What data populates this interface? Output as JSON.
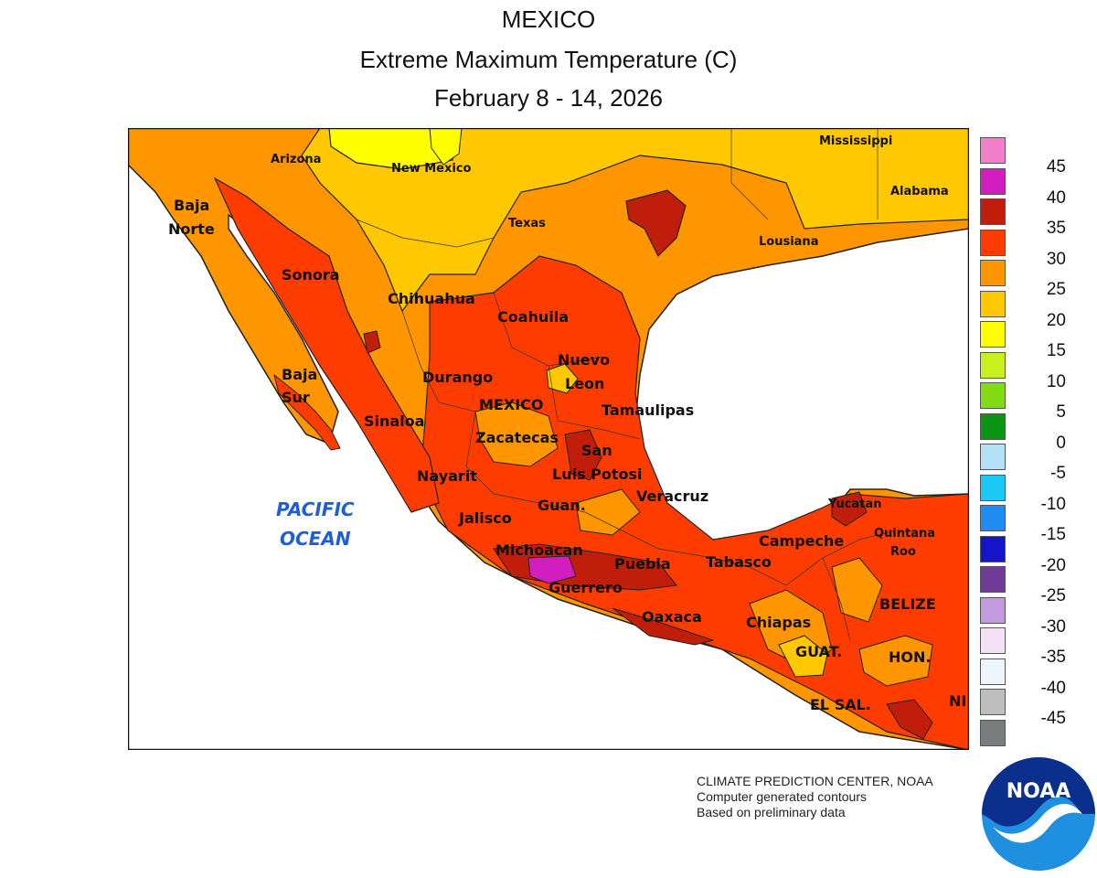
{
  "title": {
    "line1": "MEXICO",
    "line2": "Extreme Maximum Temperature (C)",
    "line3": "February 8 - 14, 2026"
  },
  "map": {
    "ocean_label_1": "PACIFIC",
    "ocean_label_2": "OCEAN",
    "regions": {
      "arizona": "Arizona",
      "new_mexico": "New Mexico",
      "texas": "Texas",
      "lousiana": "Lousiana",
      "mississippi": "Mississippi",
      "alabama": "Alabama",
      "baja_norte_1": "Baja",
      "baja_norte_2": "Norte",
      "sonora": "Sonora",
      "chihuahua": "Chihuahua",
      "coahuila": "Coahuila",
      "nuevo_leon_1": "Nuevo",
      "nuevo_leon_2": "Leon",
      "baja_sur_1": "Baja",
      "baja_sur_2": "Sur",
      "durango": "Durango",
      "mexico": "MEXICO",
      "tamaulipas": "Tamaulipas",
      "sinaloa": "Sinaloa",
      "zacatecas": "Zacatecas",
      "slp_1": "San",
      "slp_2": "Luis Potosi",
      "nayarit": "Nayarit",
      "guan": "Guan.",
      "veracruz": "Veracruz",
      "jalisco": "Jalisco",
      "yucatan": "Yucatan",
      "campeche": "Campeche",
      "quintana_roo_1": "Quintana",
      "quintana_roo_2": "Roo",
      "michoacan": "Michoacan",
      "puebla": "Puebla",
      "tabasco": "Tabasco",
      "guerrero": "Guerrero",
      "belize": "BELIZE",
      "oaxaca": "Oaxaca",
      "chiapas": "Chiapas",
      "guat": "GUAT.",
      "hon": "HON.",
      "el_sal": "EL SAL.",
      "ni": "NI"
    }
  },
  "legend": [
    {
      "value": "45",
      "color": "#f080c8"
    },
    {
      "value": "40",
      "color": "#d21ebe"
    },
    {
      "value": "35",
      "color": "#c01e0a"
    },
    {
      "value": "30",
      "color": "#ff3c00"
    },
    {
      "value": "25",
      "color": "#ff9600"
    },
    {
      "value": "20",
      "color": "#ffc800"
    },
    {
      "value": "15",
      "color": "#ffff00"
    },
    {
      "value": "10",
      "color": "#c8f01e"
    },
    {
      "value": "5",
      "color": "#82dc14"
    },
    {
      "value": "0",
      "color": "#0a9614"
    },
    {
      "value": "-5",
      "color": "#b4e1f5"
    },
    {
      "value": "-10",
      "color": "#1ec8f5"
    },
    {
      "value": "-15",
      "color": "#1e8cf0"
    },
    {
      "value": "-20",
      "color": "#1414c8"
    },
    {
      "value": "-25",
      "color": "#6e3c96"
    },
    {
      "value": "-30",
      "color": "#c39bdc"
    },
    {
      "value": "-35",
      "color": "#f5e1f5"
    },
    {
      "value": "-40",
      "color": "#eef6fc"
    },
    {
      "value": "-45",
      "color": "#bebebe"
    },
    {
      "value": "",
      "color": "#7a7d7d"
    }
  ],
  "credits": {
    "line1": "CLIMATE PREDICTION CENTER, NOAA",
    "line2": "Computer generated contours",
    "line3": "Based on preliminary data"
  },
  "logo": {
    "text": "NOAA"
  }
}
